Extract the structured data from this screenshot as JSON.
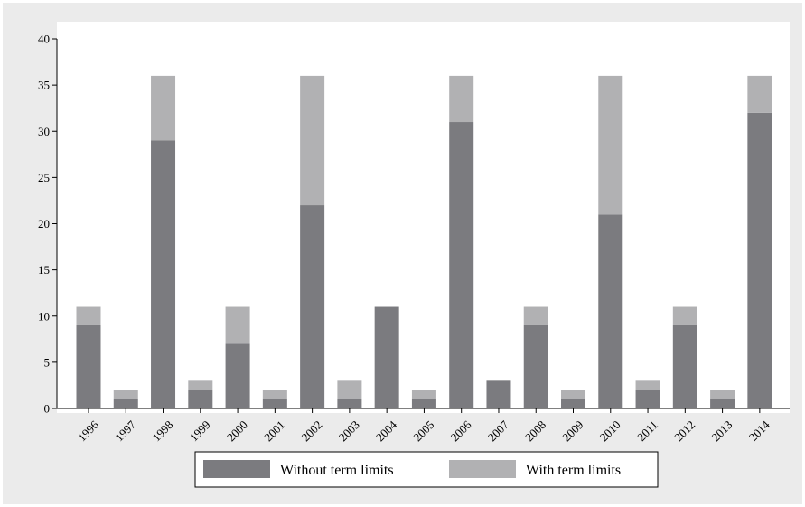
{
  "chart_data": {
    "type": "bar",
    "stacked": true,
    "title": "",
    "xlabel": "",
    "ylabel": "",
    "categories": [
      "1996",
      "1997",
      "1998",
      "1999",
      "2000",
      "2001",
      "2002",
      "2003",
      "2004",
      "2005",
      "2006",
      "2007",
      "2008",
      "2009",
      "2010",
      "2011",
      "2012",
      "2013",
      "2014"
    ],
    "series": [
      {
        "name": "Without term limits",
        "color": "#7b7b7f",
        "values": [
          9,
          1,
          29,
          2,
          7,
          1,
          22,
          1,
          11,
          1,
          31,
          3,
          9,
          1,
          21,
          2,
          9,
          1,
          32
        ]
      },
      {
        "name": "With term limits",
        "color": "#b1b1b3",
        "values": [
          2,
          1,
          7,
          1,
          4,
          1,
          14,
          2,
          0,
          1,
          5,
          0,
          2,
          1,
          15,
          1,
          2,
          1,
          4
        ]
      }
    ],
    "ylim": [
      0,
      40
    ],
    "yticks": [
      0,
      5,
      10,
      15,
      20,
      25,
      30,
      35,
      40
    ],
    "grid": false,
    "legend_position": "bottom"
  }
}
